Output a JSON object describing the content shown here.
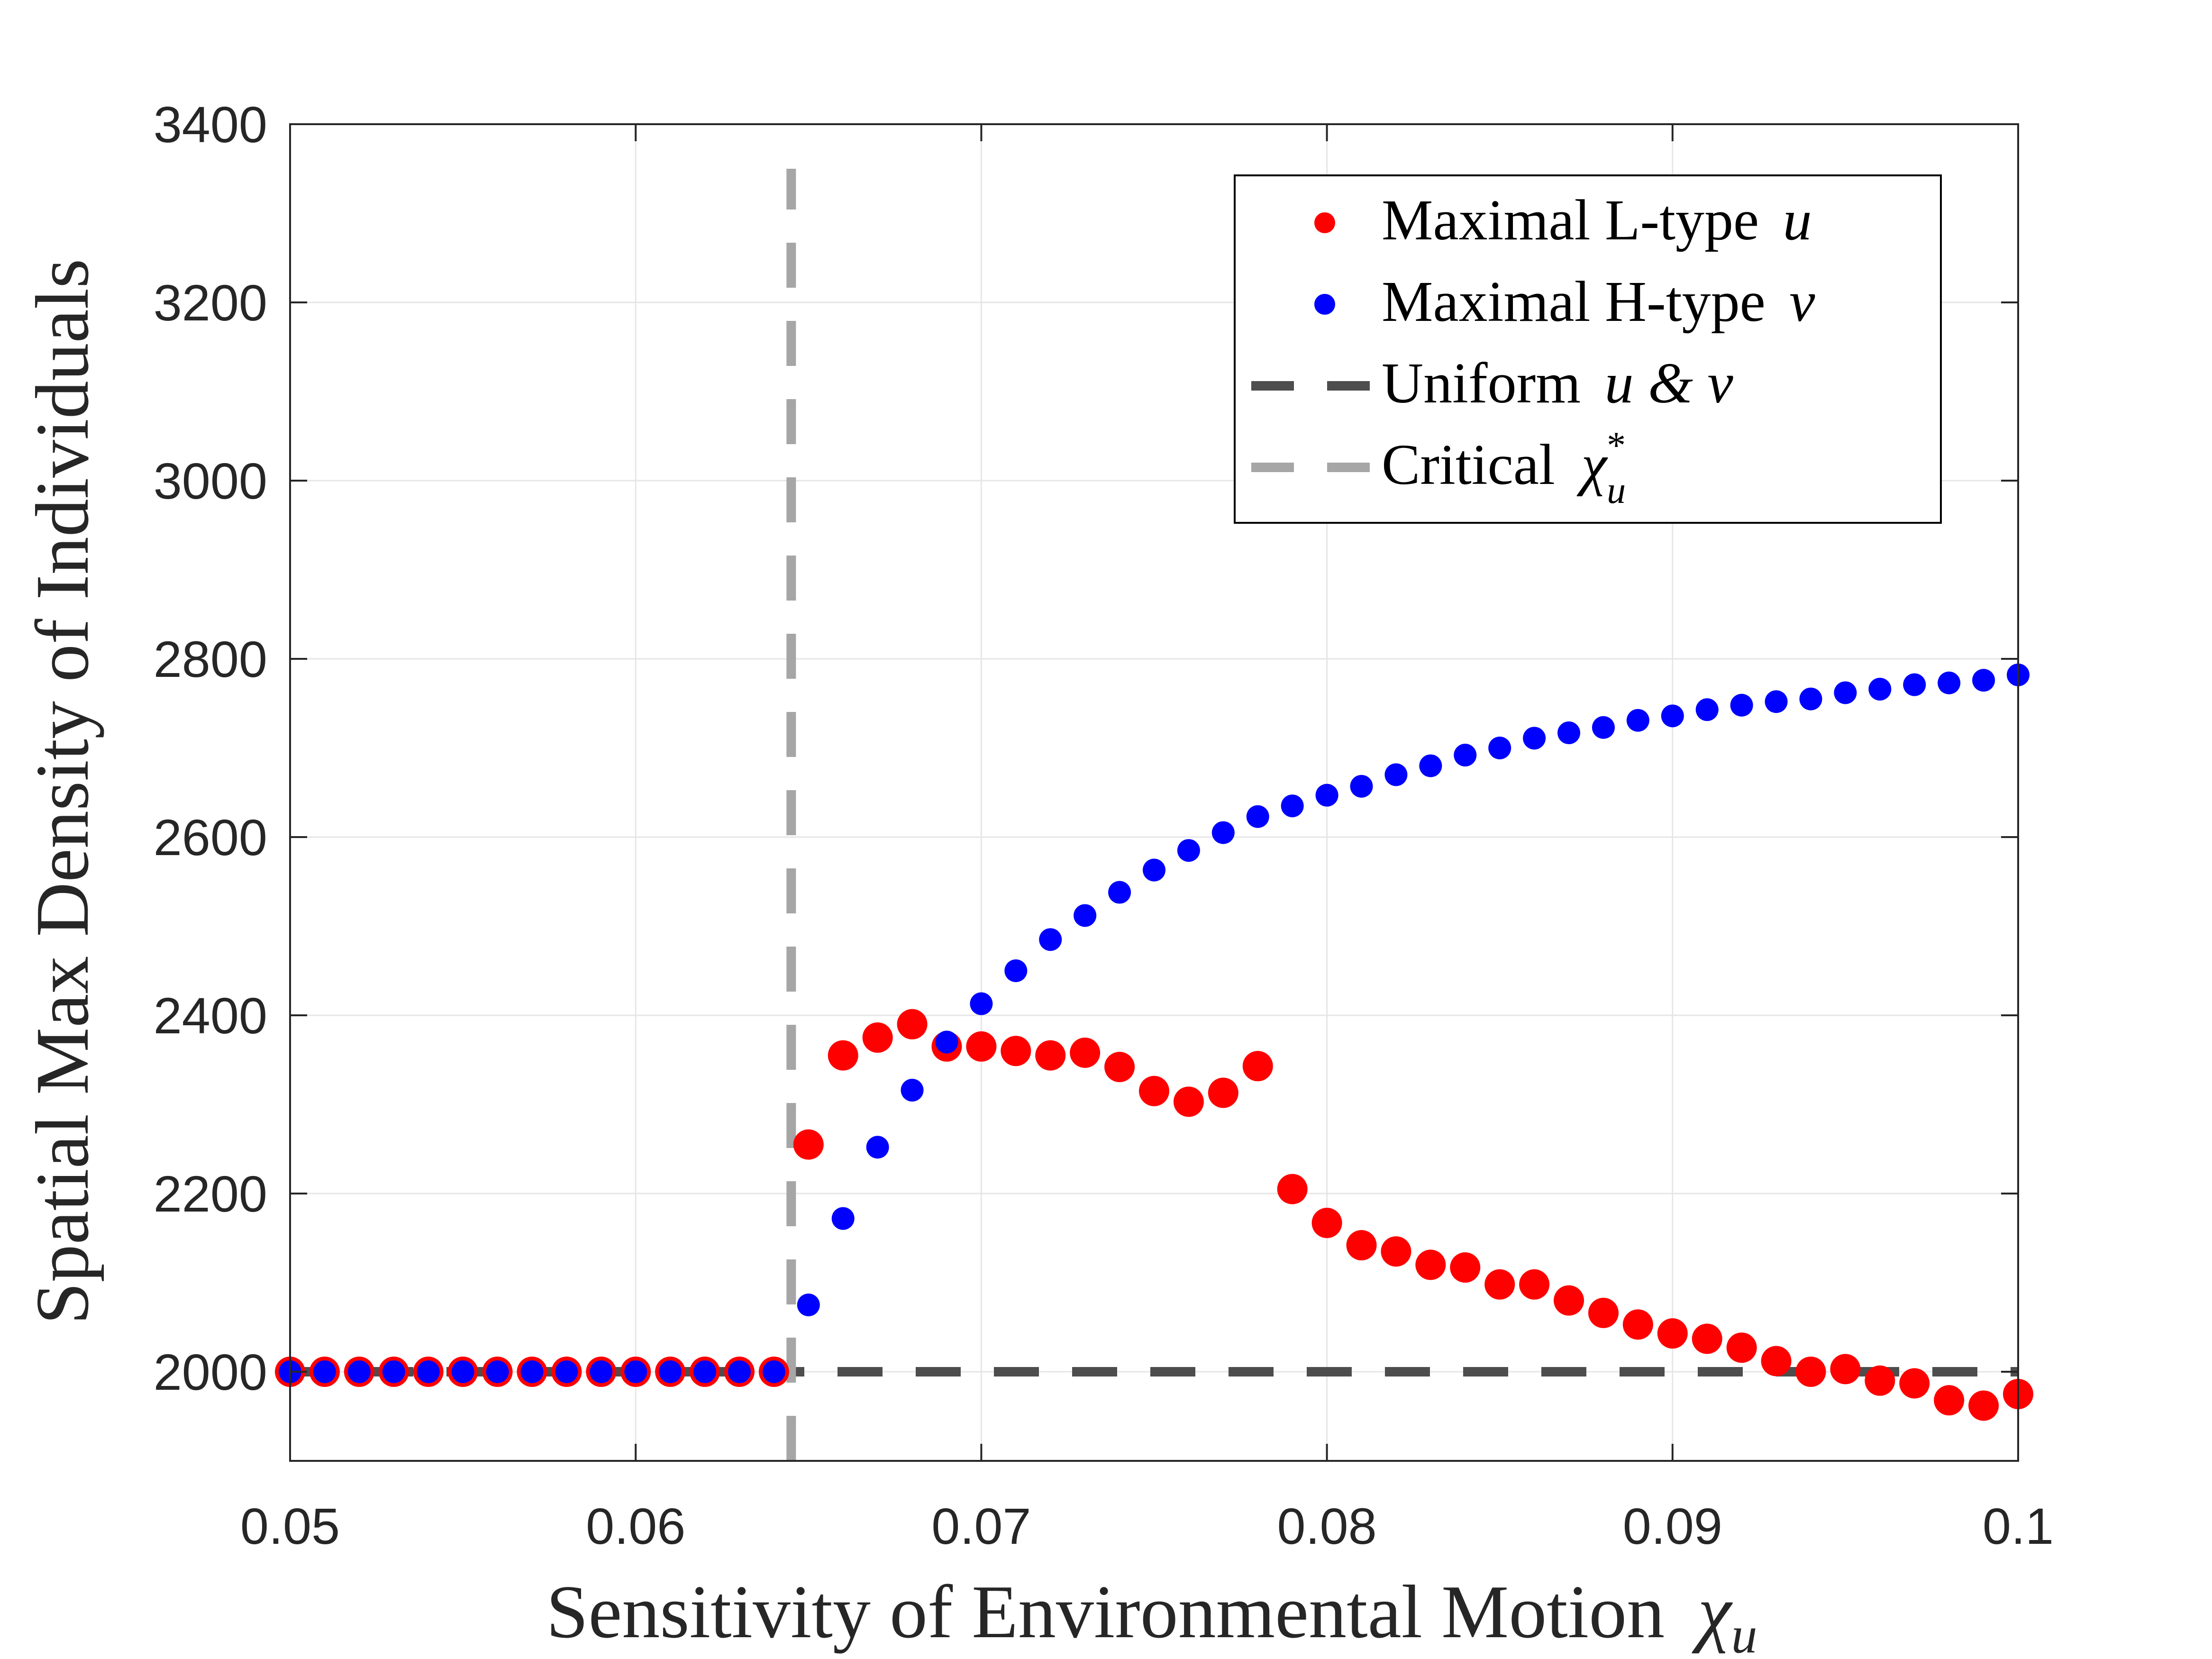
{
  "chart_data": {
    "type": "scatter",
    "title": "",
    "xlabel": "Sensitivity of Environmental Motion",
    "xlabel_symbol": "χ",
    "xlabel_subscript": "u",
    "ylabel": "Spatial Max Density of Individuals",
    "xlim": [
      0.05,
      0.1
    ],
    "ylim": [
      1900,
      3400
    ],
    "x_ticks": [
      0.05,
      0.06,
      0.07,
      0.08,
      0.09,
      0.1
    ],
    "x_tick_labels": [
      "0.05",
      "0.06",
      "0.07",
      "0.08",
      "0.09",
      "0.1"
    ],
    "y_ticks": [
      2000,
      2200,
      2400,
      2600,
      2800,
      3000,
      3200,
      3400
    ],
    "y_tick_labels": [
      "2000",
      "2200",
      "2400",
      "2600",
      "2800",
      "3000",
      "3200",
      "3400"
    ],
    "grid": true,
    "legend_position": "top-right",
    "series": [
      {
        "name": "Maximal L-type u",
        "legend_text": "Maximal L-type",
        "legend_math": "u",
        "marker": "large-dot",
        "color": "#ff0000",
        "x": [
          0.05,
          0.051,
          0.052,
          0.053,
          0.054,
          0.055,
          0.056,
          0.057,
          0.058,
          0.059,
          0.06,
          0.061,
          0.062,
          0.063,
          0.064,
          0.065,
          0.066,
          0.067,
          0.068,
          0.069,
          0.07,
          0.071,
          0.072,
          0.073,
          0.074,
          0.075,
          0.076,
          0.077,
          0.078,
          0.079,
          0.08,
          0.081,
          0.082,
          0.083,
          0.084,
          0.085,
          0.086,
          0.087,
          0.088,
          0.089,
          0.09,
          0.091,
          0.092,
          0.093,
          0.094,
          0.095,
          0.096,
          0.097,
          0.098,
          0.099,
          0.1
        ],
        "y": [
          2000,
          2000,
          2000,
          2000,
          2000,
          2000,
          2000,
          2000,
          2000,
          2000,
          2000,
          2000,
          2000,
          2000,
          2000,
          2255,
          2355,
          2375,
          2390,
          2365,
          2365,
          2360,
          2355,
          2358,
          2342,
          2315,
          2303,
          2313,
          2343,
          2205,
          2167,
          2142,
          2135,
          2120,
          2117,
          2098,
          2098,
          2080,
          2066,
          2053,
          2043,
          2037,
          2027,
          2012,
          2000,
          2003,
          1990,
          1987,
          1968,
          1962,
          1975
        ]
      },
      {
        "name": "Maximal H-type v",
        "legend_text": "Maximal H-type",
        "legend_math": "v",
        "marker": "dot",
        "color": "#0000ff",
        "x": [
          0.05,
          0.051,
          0.052,
          0.053,
          0.054,
          0.055,
          0.056,
          0.057,
          0.058,
          0.059,
          0.06,
          0.061,
          0.062,
          0.063,
          0.064,
          0.065,
          0.066,
          0.067,
          0.068,
          0.069,
          0.07,
          0.071,
          0.072,
          0.073,
          0.074,
          0.075,
          0.076,
          0.077,
          0.078,
          0.079,
          0.08,
          0.081,
          0.082,
          0.083,
          0.084,
          0.085,
          0.086,
          0.087,
          0.088,
          0.089,
          0.09,
          0.091,
          0.092,
          0.093,
          0.094,
          0.095,
          0.096,
          0.097,
          0.098,
          0.099,
          0.1
        ],
        "y": [
          2000,
          2000,
          2000,
          2000,
          2000,
          2000,
          2000,
          2000,
          2000,
          2000,
          2000,
          2000,
          2000,
          2000,
          2000,
          2075,
          2172,
          2252,
          2316,
          2370,
          2413,
          2450,
          2485,
          2512,
          2538,
          2563,
          2585,
          2605,
          2623,
          2635,
          2647,
          2657,
          2670,
          2680,
          2692,
          2700,
          2711,
          2717,
          2723,
          2731,
          2736,
          2743,
          2748,
          2752,
          2755,
          2762,
          2766,
          2771,
          2773,
          2776,
          2782
        ]
      },
      {
        "name": "Uniform u & v",
        "legend_text": "Uniform",
        "legend_math": "u & v",
        "marker": "dashed-line",
        "color": "#4d4d4d",
        "x": [
          0.05,
          0.1
        ],
        "y": [
          2000,
          2000
        ]
      },
      {
        "name": "Critical χu*",
        "legend_text": "Critical",
        "legend_math": "χ",
        "legend_math_sub": "u",
        "legend_math_sup": "*",
        "marker": "dashed-vline",
        "color": "#a6a6a6",
        "x": [
          0.0645,
          0.0645
        ],
        "y": [
          1900,
          3350
        ]
      }
    ]
  }
}
